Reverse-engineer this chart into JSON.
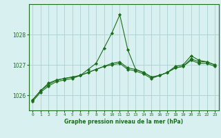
{
  "title": "Graphe pression niveau de la mer (hPa)",
  "background_color": "#d8f0f0",
  "grid_color": "#b0d4d4",
  "line_color": "#1a6e1a",
  "marker_color": "#1a6e1a",
  "xlim": [
    -0.5,
    23.5
  ],
  "ylim": [
    1025.5,
    1029.0
  ],
  "yticks": [
    1026,
    1027,
    1028
  ],
  "xticks": [
    0,
    1,
    2,
    3,
    4,
    5,
    6,
    7,
    8,
    9,
    10,
    11,
    12,
    13,
    14,
    15,
    16,
    17,
    18,
    19,
    20,
    21,
    22,
    23
  ],
  "series": [
    [
      1025.8,
      1026.1,
      1026.3,
      1026.45,
      1026.5,
      1026.55,
      1026.65,
      1026.85,
      1027.05,
      1027.55,
      1028.05,
      1028.65,
      1027.5,
      1026.85,
      1026.75,
      1026.6,
      1026.65,
      1026.75,
      1026.95,
      1027.0,
      1027.3,
      1027.15,
      1027.1,
      1027.0
    ],
    [
      1025.85,
      1026.15,
      1026.35,
      1026.5,
      1026.55,
      1026.6,
      1026.65,
      1026.75,
      1026.85,
      1026.95,
      1027.05,
      1027.1,
      1026.9,
      1026.85,
      1026.75,
      1026.6,
      1026.65,
      1026.75,
      1026.9,
      1026.95,
      1027.2,
      1027.1,
      1027.1,
      1027.0
    ],
    [
      1025.85,
      1026.15,
      1026.4,
      1026.5,
      1026.55,
      1026.6,
      1026.65,
      1026.75,
      1026.85,
      1026.95,
      1027.0,
      1027.05,
      1026.85,
      1026.8,
      1026.7,
      1026.55,
      1026.65,
      1026.75,
      1026.9,
      1026.95,
      1027.15,
      1027.05,
      1027.05,
      1026.95
    ]
  ]
}
